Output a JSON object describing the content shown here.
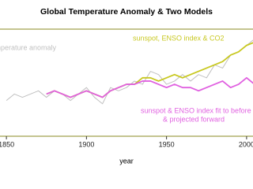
{
  "chart_data": {
    "type": "line",
    "title": "Global Temperature Anomaly & Two Models",
    "x_label": "year",
    "x": [
      1850,
      1855,
      1860,
      1865,
      1870,
      1875,
      1880,
      1885,
      1890,
      1895,
      1900,
      1905,
      1910,
      1915,
      1920,
      1925,
      1930,
      1935,
      1940,
      1945,
      1950,
      1955,
      1960,
      1965,
      1970,
      1975,
      1980,
      1985,
      1990,
      1995,
      2000,
      2005
    ],
    "series": [
      {
        "name": "temperature anomaly",
        "color": "#c0c0c0",
        "values": [
          -0.4,
          -0.3,
          -0.35,
          -0.3,
          -0.25,
          -0.35,
          -0.25,
          -0.3,
          -0.4,
          -0.3,
          -0.2,
          -0.35,
          -0.45,
          -0.2,
          -0.25,
          -0.2,
          -0.1,
          -0.15,
          0.05,
          0,
          -0.15,
          -0.1,
          0,
          -0.1,
          0,
          -0.05,
          0.15,
          0.1,
          0.3,
          0.35,
          0.45,
          0.55
        ]
      },
      {
        "name": "sunspot, ENSO index & CO2",
        "color": "#c8c820",
        "values": [
          null,
          null,
          null,
          null,
          null,
          -0.3,
          -0.25,
          -0.3,
          -0.35,
          -0.3,
          -0.25,
          -0.3,
          -0.35,
          -0.25,
          -0.2,
          -0.15,
          -0.15,
          -0.05,
          -0.05,
          -0.1,
          -0.05,
          0,
          -0.05,
          0,
          0.05,
          0.1,
          0.15,
          0.2,
          0.3,
          0.35,
          0.45,
          0.5
        ]
      },
      {
        "name": "sunspot & ENSO index fit to before 1950",
        "name_line2": "& projected forward",
        "color": "#e060e0",
        "values": [
          null,
          null,
          null,
          null,
          null,
          -0.3,
          -0.25,
          -0.3,
          -0.35,
          -0.3,
          -0.25,
          -0.3,
          -0.35,
          -0.25,
          -0.2,
          -0.15,
          -0.15,
          -0.1,
          -0.1,
          -0.15,
          -0.2,
          -0.15,
          -0.2,
          -0.2,
          -0.25,
          -0.2,
          -0.15,
          -0.1,
          -0.2,
          -0.15,
          -0.05,
          -0.15
        ]
      }
    ],
    "xlim": [
      1846,
      2004
    ],
    "xticks": [
      1850,
      1900,
      1950,
      2000
    ],
    "ylim": [
      -0.95,
      0.7
    ],
    "frame_color": "#8a8a20"
  }
}
